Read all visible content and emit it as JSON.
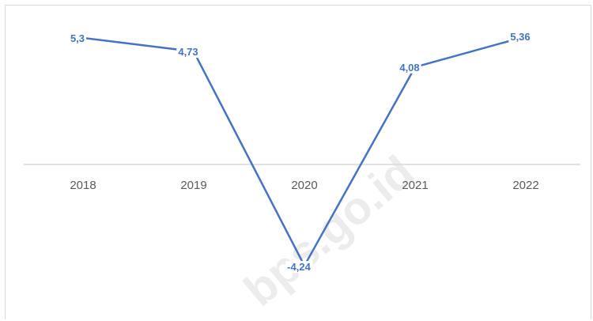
{
  "chart_data": {
    "type": "line",
    "categories": [
      "2018",
      "2019",
      "2020",
      "2021",
      "2022"
    ],
    "series": [
      {
        "values": [
          5.3,
          4.73,
          -4.24,
          4.08,
          5.36
        ],
        "labels": [
          "5,3",
          "4,73",
          "-4,24",
          "4,08",
          "5,36"
        ]
      }
    ],
    "title": "",
    "xlabel": "",
    "ylabel": "",
    "ylim": [
      -6,
      6
    ],
    "grid": false,
    "legend": "none",
    "colors": {
      "line": "#4472c4",
      "label": "#4472c4",
      "axis": "#d9d9d9",
      "tick": "#595959"
    }
  },
  "watermark": "bps.go.id"
}
